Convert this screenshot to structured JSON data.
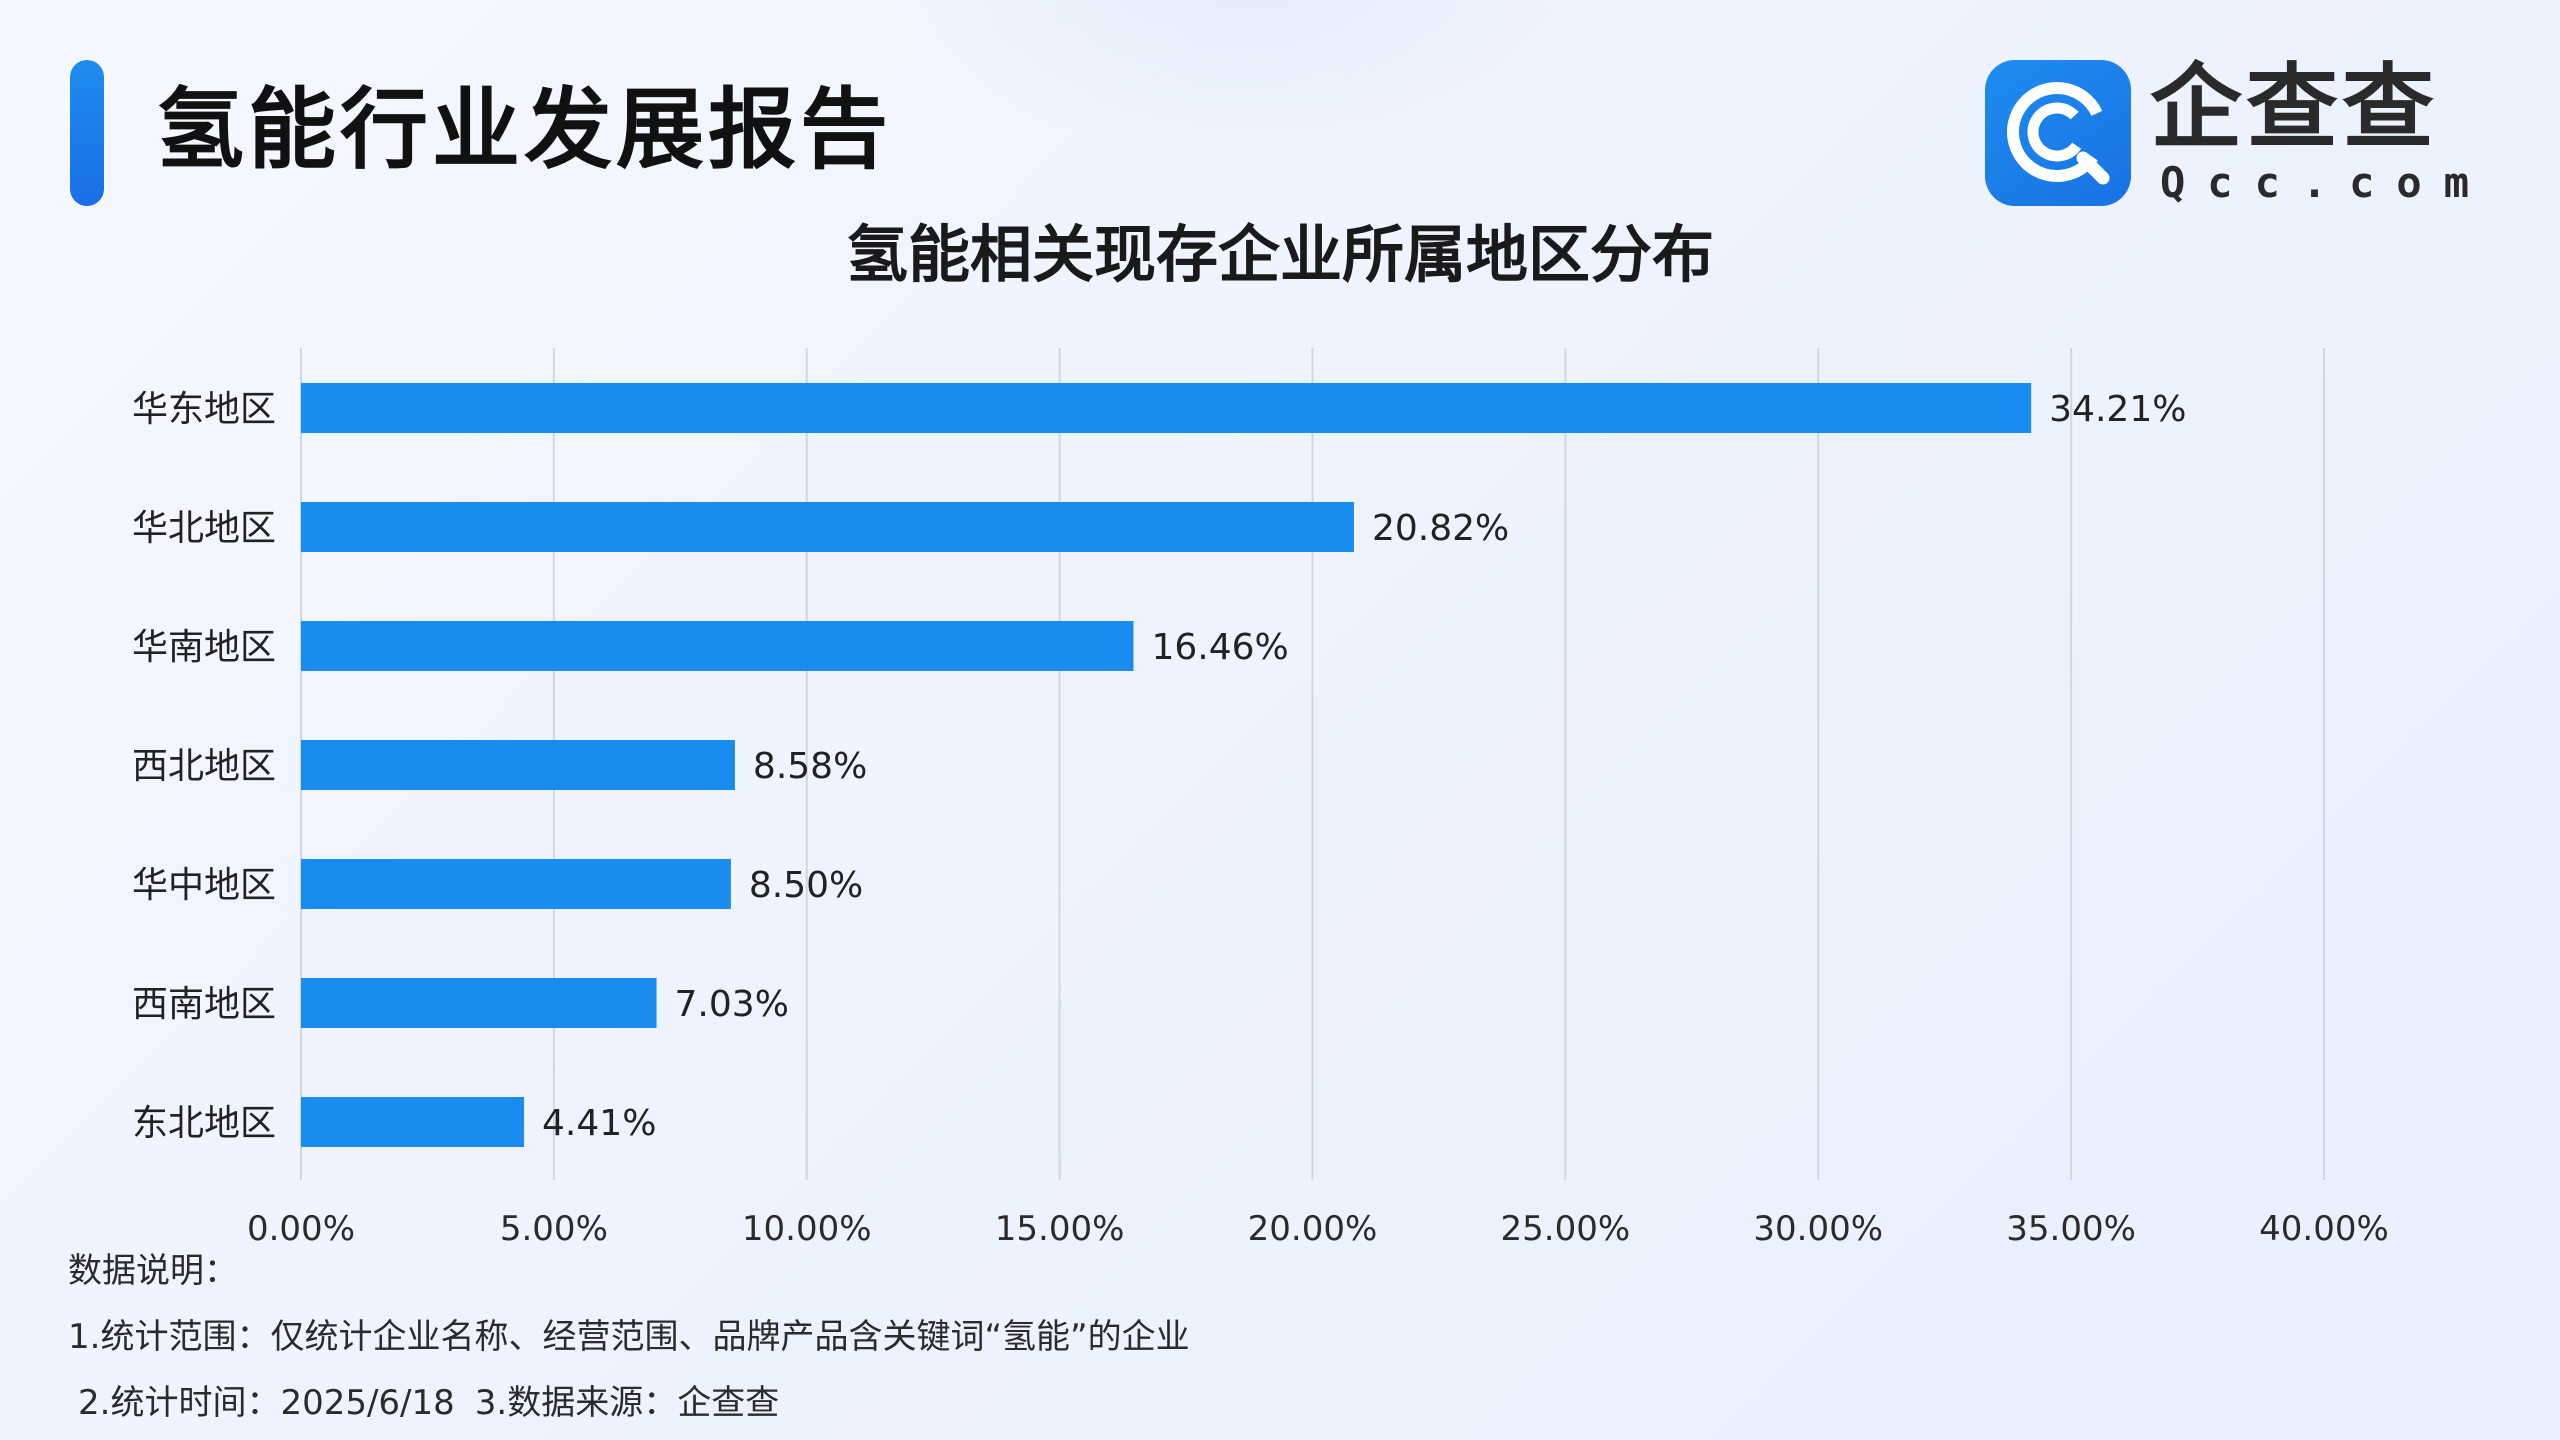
{
  "header": {
    "title": "氢能行业发展报告"
  },
  "brand": {
    "name": "企查查",
    "sub": "Qcc.com",
    "badge_icon": "qcc-logo-icon",
    "color": "#1a7ef0"
  },
  "chart_data": {
    "type": "bar",
    "orientation": "horizontal",
    "title": "氢能相关现存企业所属地区分布",
    "xlabel": "",
    "ylabel": "",
    "categories": [
      "华东地区",
      "华北地区",
      "华南地区",
      "西北地区",
      "华中地区",
      "西南地区",
      "东北地区"
    ],
    "values": [
      34.21,
      20.82,
      16.46,
      8.58,
      8.5,
      7.03,
      4.41
    ],
    "data_labels": [
      "34.21%",
      "20.82%",
      "16.46%",
      "8.58%",
      "8.50%",
      "7.03%",
      "4.41%"
    ],
    "xlim": [
      0,
      40
    ],
    "x_ticks": [
      0,
      5,
      10,
      15,
      20,
      25,
      30,
      35,
      40
    ],
    "x_tick_labels": [
      "0.00%",
      "5.00%",
      "10.00%",
      "15.00%",
      "20.00%",
      "25.00%",
      "30.00%",
      "35.00%",
      "40.00%"
    ],
    "grid": "vertical",
    "bar_color": "#1a8cf0",
    "grid_color": "#d2d6de"
  },
  "notes": {
    "heading": "数据说明：",
    "line1": "1.统计范围：仅统计企业名称、经营范围、品牌产品含关键词“氢能”的企业",
    "line2a": "2.统计时间：2025/6/18",
    "line2b": "3.数据来源：企查查"
  }
}
